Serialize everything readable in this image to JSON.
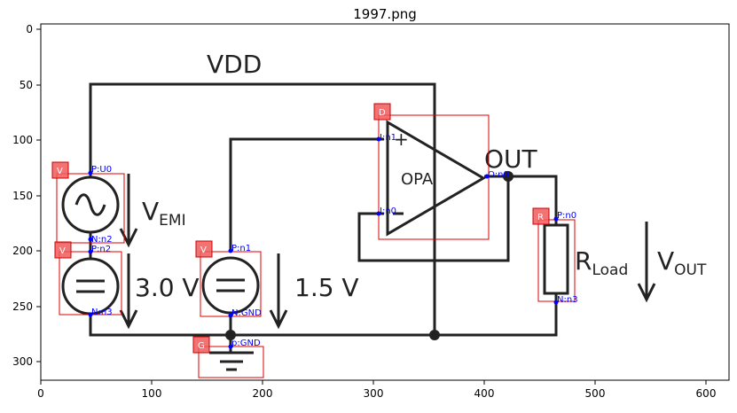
{
  "figure": {
    "title": "1997.png",
    "x_ticks": [
      "0",
      "100",
      "200",
      "300",
      "400",
      "500",
      "600"
    ],
    "y_ticks": [
      "0",
      "50",
      "100",
      "150",
      "200",
      "250",
      "300"
    ]
  },
  "circuit_text": {
    "vdd": "VDD",
    "out": "OUT",
    "opa": "OPA",
    "vemi_main": "V",
    "vemi_sub": "EMI",
    "v30": "3.0 V",
    "v15": "1.5 V",
    "rload_main": "R",
    "rload_sub": "Load",
    "vout_main": "V",
    "vout_sub": "OUT",
    "plus_sign": "+"
  },
  "annotations": [
    {
      "badge": "V",
      "pins": [
        "P:U0",
        "N:n2"
      ]
    },
    {
      "badge": "V",
      "pins": [
        "P:n2",
        "N:n3"
      ]
    },
    {
      "badge": "V",
      "pins": [
        "P:n1",
        "N:GND"
      ]
    },
    {
      "badge": "G",
      "pins": [
        "p:GND"
      ]
    },
    {
      "badge": "D",
      "pins": [
        "I:n1",
        "I:n0",
        "O:n0"
      ]
    },
    {
      "badge": "R",
      "pins": [
        "P:n0",
        "N:n3"
      ]
    }
  ],
  "colors": {
    "badge": "#ef5b5b",
    "bbox": "#e00000",
    "pin": "#0000ff",
    "wire": "#222222"
  }
}
